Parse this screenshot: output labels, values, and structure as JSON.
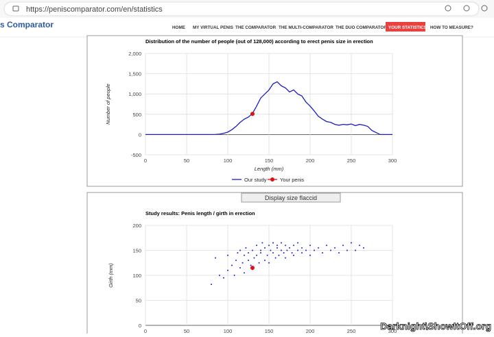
{
  "browser": {
    "url": "https://peniscomparator.com/en/statistics"
  },
  "site": {
    "brand": "s Comparator",
    "nav": [
      "HOME",
      "MY VIRTUAL PENIS",
      "THE COMPARATOR",
      "THE MULTI-COMPARATOR",
      "THE DUO COMPARATOR",
      "YOUR STATISTICS",
      "HOW TO MEASURE?"
    ],
    "button": "Display size flaccid",
    "watermark": "Darknight\\ShowItOff.org"
  },
  "chart_data": [
    {
      "type": "line",
      "title": "Distribution of the number of people (out of 128,000) according to erect penis size in erection",
      "x_label": "Length (mm)",
      "y_label": "Number of people",
      "grid": true,
      "legend": "bottom",
      "xlim": [
        0,
        300
      ],
      "xticks": [
        0,
        50,
        100,
        150,
        200,
        250,
        300
      ],
      "ylim": [
        -500,
        2000
      ],
      "yticks": [
        -500,
        0,
        500,
        {
          "value": 1000,
          "label": "1,000"
        },
        {
          "value": 1500,
          "label": "1,500"
        },
        {
          "value": 2000,
          "label": "2,000"
        }
      ],
      "series": [
        {
          "name": "Our study",
          "color": "#1a1acc",
          "x": [
            0,
            5,
            10,
            15,
            20,
            25,
            30,
            35,
            40,
            45,
            50,
            55,
            60,
            65,
            70,
            75,
            80,
            85,
            90,
            95,
            100,
            105,
            110,
            115,
            120,
            125,
            130,
            135,
            140,
            145,
            150,
            155,
            160,
            165,
            170,
            175,
            180,
            185,
            190,
            195,
            200,
            205,
            210,
            215,
            220,
            225,
            230,
            235,
            240,
            245,
            250,
            255,
            260,
            265,
            270,
            275,
            280,
            285,
            290,
            295,
            300
          ],
          "values": [
            0,
            0,
            0,
            0,
            0,
            0,
            0,
            0,
            0,
            0,
            0,
            0,
            0,
            0,
            0,
            0,
            0,
            2,
            10,
            30,
            60,
            120,
            200,
            300,
            380,
            430,
            520,
            700,
            900,
            1000,
            1100,
            1250,
            1300,
            1200,
            1150,
            1050,
            1100,
            1000,
            950,
            800,
            700,
            580,
            450,
            380,
            320,
            300,
            250,
            230,
            250,
            240,
            260,
            220,
            250,
            230,
            200,
            100,
            50,
            0,
            0,
            0,
            0
          ]
        },
        {
          "name": "Your penis",
          "color": "#e01010",
          "x": [
            130
          ],
          "values": [
            510
          ]
        }
      ]
    },
    {
      "type": "scatter",
      "title": "Study results: Penis length / girth in erection",
      "y_label": "Girth (mm)",
      "grid": true,
      "xlim": [
        0,
        300
      ],
      "xticks": [
        0,
        50,
        100,
        150,
        200,
        250,
        300
      ],
      "ylim": [
        0,
        200
      ],
      "yticks": [
        0,
        50,
        100,
        150,
        200
      ],
      "series": [
        {
          "color": "#1a1ae6",
          "x": [
            80,
            85,
            90,
            95,
            100,
            100,
            105,
            108,
            110,
            112,
            115,
            115,
            118,
            120,
            120,
            122,
            125,
            125,
            128,
            130,
            130,
            132,
            135,
            135,
            138,
            140,
            140,
            142,
            145,
            145,
            148,
            150,
            150,
            152,
            155,
            155,
            158,
            160,
            160,
            162,
            165,
            165,
            168,
            170,
            170,
            172,
            175,
            178,
            180,
            180,
            185,
            185,
            190,
            190,
            195,
            200,
            200,
            205,
            210,
            215,
            220,
            225,
            230,
            235,
            240,
            245,
            250,
            255,
            260,
            265
          ],
          "values": [
            82,
            135,
            100,
            95,
            110,
            140,
            120,
            100,
            130,
            145,
            115,
            150,
            125,
            140,
            105,
            155,
            130,
            145,
            120,
            150,
            112,
            135,
            160,
            140,
            125,
            150,
            145,
            165,
            130,
            155,
            140,
            160,
            125,
            150,
            145,
            165,
            135,
            155,
            160,
            140,
            150,
            165,
            145,
            160,
            135,
            150,
            155,
            145,
            160,
            140,
            150,
            165,
            145,
            155,
            150,
            160,
            140,
            150,
            155,
            145,
            160,
            150,
            155,
            145,
            160,
            150,
            165,
            150,
            160,
            155
          ]
        },
        {
          "color": "#e01010",
          "x": [
            130
          ],
          "values": [
            115
          ]
        }
      ]
    }
  ]
}
